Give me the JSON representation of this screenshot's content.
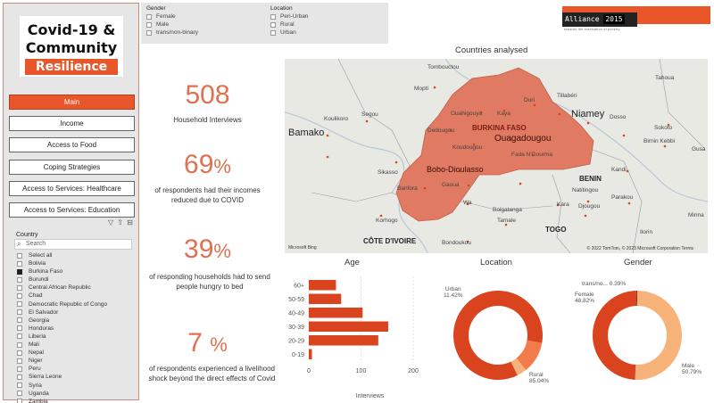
{
  "sidebar": {
    "title_line1": "Covid-19 &",
    "title_line2": "Community",
    "title_accent": "Resilience",
    "nav": [
      {
        "label": "Main",
        "active": true
      },
      {
        "label": "Income"
      },
      {
        "label": "Access to Food"
      },
      {
        "label": "Coping Strategies"
      },
      {
        "label": "Access to Services: Healthcare"
      },
      {
        "label": "Access to Services: Education"
      }
    ],
    "filter_icons": "▽ ⇧ ⊟",
    "country_title": "Country",
    "search_placeholder": "Search",
    "countries": [
      {
        "name": "Select all",
        "checked": false
      },
      {
        "name": "Bolivia",
        "checked": false
      },
      {
        "name": "Burkina Faso",
        "checked": true
      },
      {
        "name": "Burundi",
        "checked": false
      },
      {
        "name": "Central African Republic",
        "checked": false
      },
      {
        "name": "Chad",
        "checked": false
      },
      {
        "name": "Democratic Republic of Congo",
        "checked": false
      },
      {
        "name": "El Salvador",
        "checked": false
      },
      {
        "name": "Georgia",
        "checked": false
      },
      {
        "name": "Honduras",
        "checked": false
      },
      {
        "name": "Liberia",
        "checked": false
      },
      {
        "name": "Mali",
        "checked": false
      },
      {
        "name": "Nepal",
        "checked": false
      },
      {
        "name": "Niger",
        "checked": false
      },
      {
        "name": "Peru",
        "checked": false
      },
      {
        "name": "Sierra Leone",
        "checked": false
      },
      {
        "name": "Syria",
        "checked": false
      },
      {
        "name": "Uganda",
        "checked": false
      },
      {
        "name": "Zambia",
        "checked": false
      }
    ]
  },
  "slicers": {
    "gender_title": "Gender",
    "gender_options": [
      "Female",
      "Male",
      "trans/non-binary"
    ],
    "location_title": "Location",
    "location_options": [
      "Peri-Urban",
      "Rural",
      "Urban"
    ]
  },
  "logo": {
    "name": "Alliance",
    "year": "2015",
    "tagline": "towards the eradication of poverty"
  },
  "kpis": [
    {
      "value": "508",
      "label": "Household Interviews"
    },
    {
      "value": "69",
      "unit": "%",
      "label": "of respondents had their incomes reduced due to COVID"
    },
    {
      "value": "39",
      "unit": "%",
      "label": "of responding households had to send people hungry to bed"
    },
    {
      "value": "7",
      "unit": "%",
      "label": "of respondents experienced a livelihood shock beyond the direct effects of Covid"
    }
  ],
  "map": {
    "title": "Countries analysed",
    "highlight_color": "#e07a63",
    "highlight_country": "BURKINA FASO",
    "countries": [
      "BENIN",
      "TOGO",
      "CÔTE D'IVOIRE"
    ],
    "cities": [
      "Mopti",
      "Tombouctou",
      "Tahoua",
      "Koulikoro",
      "Segou",
      "Bamako",
      "Tillabéri",
      "Niamey",
      "Dosso",
      "Sokoto",
      "Birnin Kebbi",
      "Gusa",
      "Sikasso",
      "Kandi",
      "Natitingou",
      "Djougou",
      "Parakou",
      "Ilorin",
      "Minna",
      "Korhogo",
      "Tamale",
      "Bondoukou",
      "Bolgatanga",
      "Kara",
      "Ouahigouya",
      "Kaya",
      "Dori",
      "Dedougou",
      "Koudougou",
      "Ouagadougou",
      "Bobo-Dioulasso",
      "Fada N'Gourma",
      "Banfora",
      "Gaoua",
      "Wa"
    ],
    "credit": "© 2022 TomTom, © 2023 Microsoft Corporation  Terms",
    "ms_logo": "Microsoft Bing"
  },
  "charts": {
    "age": {
      "title": "Age",
      "chart_data": {
        "type": "bar",
        "orientation": "horizontal",
        "categories": [
          "60+",
          "50-59",
          "40-49",
          "30-39",
          "20-29",
          "0-19"
        ],
        "values": [
          52,
          62,
          103,
          152,
          133,
          6
        ],
        "xlabel": "Interviews",
        "xlim": [
          0,
          200
        ],
        "xticks": [
          "0",
          "100",
          "200"
        ],
        "color": "#d9431e"
      }
    },
    "location": {
      "title": "Location",
      "chart_data": {
        "type": "pie",
        "donut": true,
        "categories": [
          "Rural",
          "Urban",
          "Peri-Urban"
        ],
        "values": [
          85.04,
          11.42,
          3.54
        ],
        "colors": [
          "#d9431e",
          "#f27a4b",
          "#f7b27a"
        ],
        "labels": [
          "Rural\n85.04%",
          "Urban\n11.42%"
        ]
      }
    },
    "gender": {
      "title": "Gender",
      "chart_data": {
        "type": "pie",
        "donut": true,
        "categories": [
          "Male",
          "Female",
          "trans/no..."
        ],
        "values": [
          50.79,
          48.82,
          0.39
        ],
        "colors": [
          "#f7b27a",
          "#d9431e",
          "#8a3a20"
        ],
        "labels": [
          "Male\n50.79%",
          "Female\n48.82%",
          "trans/no... 0.39%"
        ]
      }
    }
  }
}
